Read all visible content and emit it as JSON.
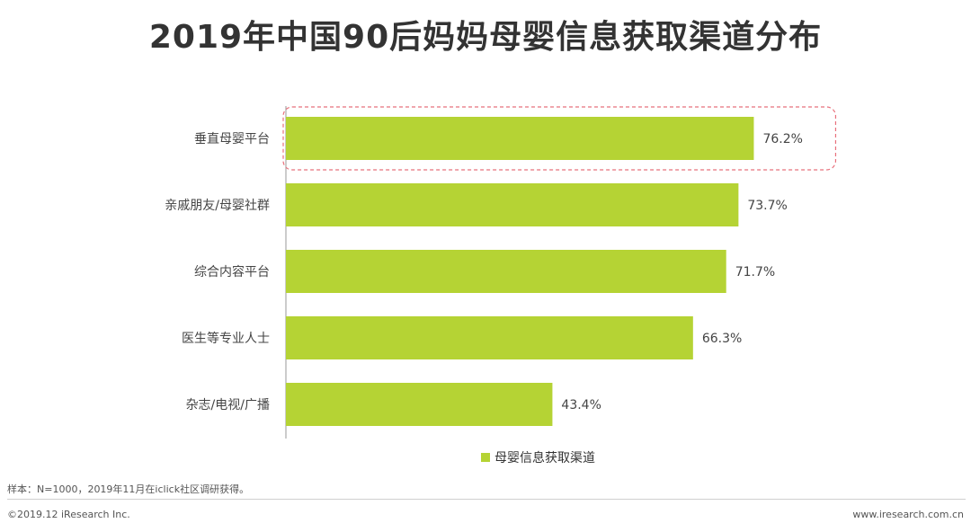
{
  "title": "2019年中国90后妈妈母婴信息获取渠道分布",
  "chart_data": {
    "type": "bar",
    "orientation": "horizontal",
    "categories": [
      "垂直母婴平台",
      "亲戚朋友/母婴社群",
      "综合内容平台",
      "医生等专业人士",
      "杂志/电视/广播"
    ],
    "series": [
      {
        "name": "母婴信息获取渠道",
        "values": [
          76.2,
          73.7,
          71.7,
          66.3,
          43.4
        ],
        "labels": [
          "76.2%",
          "73.7%",
          "71.7%",
          "66.3%",
          "43.4%"
        ]
      }
    ],
    "highlighted_category": "垂直母婴平台",
    "legend_position": "bottom",
    "grid": false
  },
  "colors": {
    "bar": "#b5d334",
    "highlight_border": "#e8707c",
    "axis": "#999999"
  },
  "footer": {
    "note": "样本：N=1000，2019年11月在iclick社区调研获得。",
    "copyright": "©2019.12 iResearch Inc.",
    "website": "www.iresearch.com.cn"
  }
}
